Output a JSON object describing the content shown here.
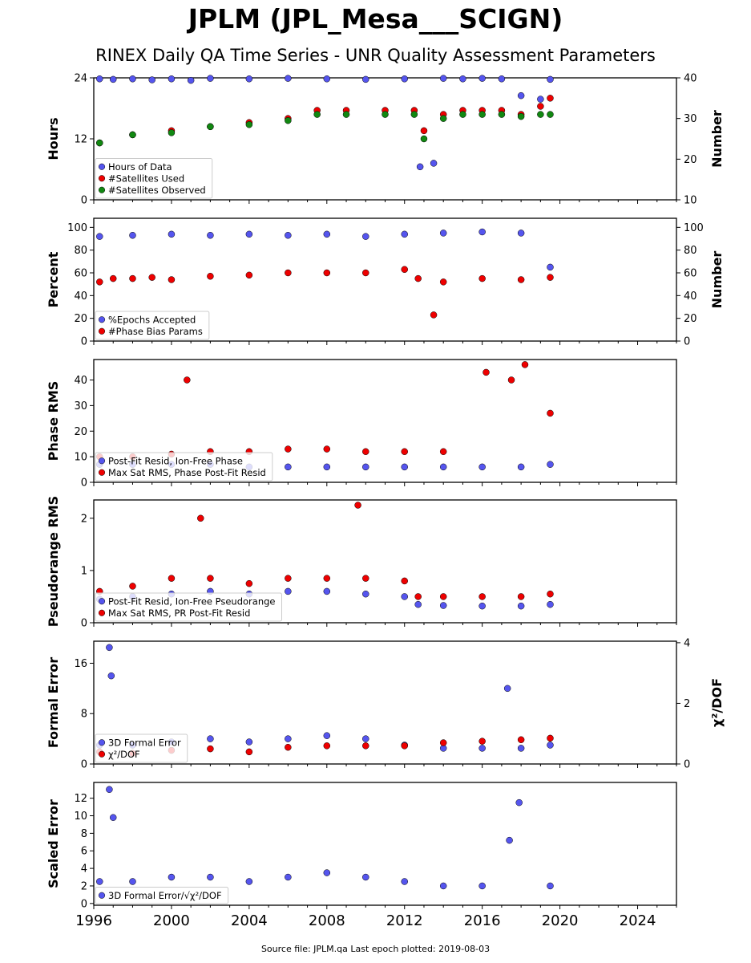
{
  "title": "JPLM (JPL_Mesa___SCIGN)",
  "subtitle": "RINEX Daily QA Time Series - UNR Quality Assessment Parameters",
  "footer": "Source file: JPLM.qa Last epoch plotted: 2019-08-03",
  "colors": {
    "blue": "#5555ee",
    "red": "#ee0000",
    "green": "#118811",
    "edge": "#000000"
  },
  "chart_data": [
    {
      "type": "scatter",
      "ylabel": "Hours",
      "ylim": [
        0,
        24
      ],
      "yticks": [
        "0",
        "12",
        "24"
      ],
      "y2label": "Number",
      "y2lim": [
        10,
        40
      ],
      "y2ticks": [
        "10",
        "20",
        "30",
        "40"
      ],
      "xlim": [
        1996,
        2026
      ],
      "series": [
        {
          "name": "Hours of Data",
          "color": "blue",
          "axis": "left",
          "x": [
            1996.3,
            1997,
            1998,
            1999,
            2000,
            2001,
            2002,
            2004,
            2006,
            2008,
            2010,
            2012,
            2012.8,
            2013.5,
            2014,
            2015,
            2016,
            2017,
            2018,
            2019,
            2019.5
          ],
          "y": [
            23.8,
            23.7,
            23.8,
            23.6,
            23.8,
            23.5,
            23.9,
            23.8,
            23.9,
            23.8,
            23.7,
            23.8,
            6.5,
            7.2,
            23.9,
            23.8,
            23.9,
            23.8,
            20.5,
            19.8,
            23.7
          ]
        },
        {
          "name": "#Satellites Used",
          "color": "red",
          "axis": "right",
          "x": [
            1996.3,
            1998,
            2000,
            2002,
            2004,
            2006,
            2007.5,
            2009,
            2011,
            2012.5,
            2013,
            2014,
            2015,
            2016,
            2017,
            2018,
            2019,
            2019.5
          ],
          "y": [
            24,
            26,
            27,
            28,
            29,
            30,
            32,
            32,
            32,
            32,
            27,
            31,
            32,
            32,
            32,
            31,
            33,
            35
          ]
        },
        {
          "name": "#Satellites Observed",
          "color": "green",
          "axis": "right",
          "x": [
            1996.3,
            1998,
            2000,
            2002,
            2004,
            2006,
            2007.5,
            2009,
            2011,
            2012.5,
            2013,
            2014,
            2015,
            2016,
            2017,
            2018,
            2019,
            2019.5
          ],
          "y": [
            24,
            26,
            26.5,
            28,
            28.5,
            29.5,
            31,
            31,
            31,
            31,
            25,
            30,
            31,
            31,
            31,
            30.5,
            31,
            31
          ]
        }
      ]
    },
    {
      "type": "scatter",
      "ylabel": "Percent",
      "ylim": [
        0,
        108
      ],
      "yticks": [
        "0",
        "20",
        "40",
        "60",
        "80",
        "100"
      ],
      "y2label": "Number",
      "y2lim": [
        0,
        108
      ],
      "y2ticks": [
        "0",
        "20",
        "40",
        "60",
        "80",
        "100"
      ],
      "xlim": [
        1996,
        2026
      ],
      "series": [
        {
          "name": "%Epochs Accepted",
          "color": "blue",
          "axis": "left",
          "x": [
            1996.3,
            1998,
            2000,
            2002,
            2004,
            2006,
            2008,
            2010,
            2012,
            2014,
            2016,
            2018,
            2019.5
          ],
          "y": [
            92,
            93,
            94,
            93,
            94,
            93,
            94,
            92,
            94,
            95,
            96,
            95,
            65
          ]
        },
        {
          "name": "#Phase Bias Params",
          "color": "red",
          "axis": "right",
          "x": [
            1996.3,
            1997,
            1998,
            1999,
            2000,
            2002,
            2004,
            2006,
            2008,
            2010,
            2012,
            2012.7,
            2013.5,
            2014,
            2016,
            2018,
            2019.5
          ],
          "y": [
            52,
            55,
            55,
            56,
            54,
            57,
            58,
            60,
            60,
            60,
            63,
            55,
            23,
            52,
            55,
            54,
            56
          ]
        }
      ]
    },
    {
      "type": "scatter",
      "ylabel": "Phase RMS",
      "ylim": [
        0,
        48
      ],
      "yticks": [
        "0",
        "10",
        "20",
        "30",
        "40"
      ],
      "xlim": [
        1996,
        2026
      ],
      "series": [
        {
          "name": "Post-Fit Resid, Ion-Free Phase",
          "color": "blue",
          "axis": "left",
          "x": [
            1996.3,
            1998,
            2000,
            2002,
            2004,
            2006,
            2008,
            2010,
            2012,
            2014,
            2016,
            2018,
            2019.5
          ],
          "y": [
            7,
            7,
            7,
            7,
            6,
            6,
            6,
            6,
            6,
            6,
            6,
            6,
            7
          ]
        },
        {
          "name": "Max Sat RMS, Phase Post-Fit Resid",
          "color": "red",
          "axis": "left",
          "x": [
            1996.3,
            1998,
            2000,
            2000.8,
            2002,
            2004,
            2006,
            2008,
            2010,
            2012,
            2014,
            2016.2,
            2017.5,
            2018.2,
            2019.5
          ],
          "y": [
            10,
            10,
            11,
            40,
            12,
            12,
            13,
            13,
            12,
            12,
            12,
            43,
            40,
            46,
            27
          ]
        }
      ]
    },
    {
      "type": "scatter",
      "ylabel": "Pseudorange RMS",
      "ylim": [
        0,
        2.35
      ],
      "yticks": [
        "0",
        "1",
        "2"
      ],
      "xlim": [
        1996,
        2026
      ],
      "series": [
        {
          "name": "Post-Fit Resid, Ion-Free Pseudorange",
          "color": "blue",
          "axis": "left",
          "x": [
            1996.3,
            1998,
            2000,
            2002,
            2004,
            2006,
            2008,
            2010,
            2012,
            2012.7,
            2014,
            2016,
            2018,
            2019.5
          ],
          "y": [
            0.45,
            0.5,
            0.55,
            0.6,
            0.55,
            0.6,
            0.6,
            0.55,
            0.5,
            0.35,
            0.33,
            0.32,
            0.32,
            0.35
          ]
        },
        {
          "name": "Max Sat RMS, PR Post-Fit Resid",
          "color": "red",
          "axis": "left",
          "x": [
            1996.3,
            1998,
            2000,
            2001.5,
            2002,
            2004,
            2006,
            2008,
            2009.6,
            2010,
            2012,
            2012.7,
            2014,
            2016,
            2018,
            2019.5
          ],
          "y": [
            0.6,
            0.7,
            0.85,
            2.0,
            0.85,
            0.75,
            0.85,
            0.85,
            2.25,
            0.85,
            0.8,
            0.5,
            0.5,
            0.5,
            0.5,
            0.55
          ]
        }
      ]
    },
    {
      "type": "scatter",
      "ylabel": "Formal Error",
      "ylim": [
        0,
        19.5
      ],
      "yticks": [
        "0",
        "8",
        "16"
      ],
      "y2label": "χ²/DOF",
      "y2lim": [
        0,
        4.05
      ],
      "y2ticks": [
        "0",
        "2",
        "4"
      ],
      "xlim": [
        1996,
        2026
      ],
      "series": [
        {
          "name": "3D Formal Error",
          "color": "blue",
          "axis": "left",
          "x": [
            1996.3,
            1996.8,
            1996.9,
            1998,
            2000,
            2002,
            2004,
            2006,
            2008,
            2010,
            2012,
            2014,
            2016,
            2017.3,
            2018,
            2019.5
          ],
          "y": [
            3,
            18.5,
            14,
            3,
            3.5,
            4,
            3.5,
            4,
            4.5,
            4,
            3,
            2.5,
            2.5,
            12,
            2.5,
            3
          ]
        },
        {
          "name": "χ²/DOF",
          "color": "red",
          "axis": "right",
          "x": [
            1996.3,
            1998,
            2000,
            2002,
            2004,
            2006,
            2008,
            2010,
            2012,
            2014,
            2016,
            2018,
            2019.5
          ],
          "y": [
            0.4,
            0.35,
            0.45,
            0.5,
            0.4,
            0.55,
            0.6,
            0.6,
            0.6,
            0.7,
            0.75,
            0.8,
            0.85
          ]
        }
      ]
    },
    {
      "type": "scatter",
      "ylabel": "Scaled Error",
      "ylim": [
        -0.2,
        13.8
      ],
      "yticks": [
        "0",
        "2",
        "4",
        "6",
        "8",
        "10",
        "12"
      ],
      "xlim": [
        1996,
        2026
      ],
      "xticks": [
        "1996",
        "2000",
        "2004",
        "2008",
        "2012",
        "2016",
        "2020",
        "2024"
      ],
      "series": [
        {
          "name": "3D Formal Error/√χ²/DOF",
          "color": "blue",
          "axis": "left",
          "x": [
            1996.3,
            1996.8,
            1997,
            1998,
            2000,
            2002,
            2004,
            2006,
            2008,
            2010,
            2012,
            2014,
            2016,
            2017.4,
            2017.9,
            2019.5
          ],
          "y": [
            2.5,
            13,
            9.8,
            2.5,
            3,
            3,
            2.5,
            3,
            3.5,
            3,
            2.5,
            2,
            2,
            7.2,
            11.5,
            2
          ]
        }
      ]
    }
  ],
  "legends": [
    {
      "items": [
        {
          "label": "Hours of Data",
          "color": "blue"
        },
        {
          "label": "#Satellites Used",
          "color": "red"
        },
        {
          "label": "#Satellites Observed",
          "color": "green"
        }
      ]
    },
    {
      "items": [
        {
          "label": "%Epochs Accepted",
          "color": "blue"
        },
        {
          "label": "#Phase Bias Params",
          "color": "red"
        }
      ]
    },
    {
      "items": [
        {
          "label": "Post-Fit Resid, Ion-Free Phase",
          "color": "blue"
        },
        {
          "label": "Max Sat RMS, Phase Post-Fit Resid",
          "color": "red"
        }
      ]
    },
    {
      "items": [
        {
          "label": "Post-Fit Resid, Ion-Free Pseudorange",
          "color": "blue"
        },
        {
          "label": "Max Sat RMS, PR Post-Fit Resid",
          "color": "red"
        }
      ]
    },
    {
      "items": [
        {
          "label": "3D Formal Error",
          "color": "blue"
        },
        {
          "label": "χ²/DOF",
          "color": "red"
        }
      ]
    },
    {
      "items": [
        {
          "label": "3D Formal Error/√χ²/DOF",
          "color": "blue"
        }
      ]
    }
  ]
}
